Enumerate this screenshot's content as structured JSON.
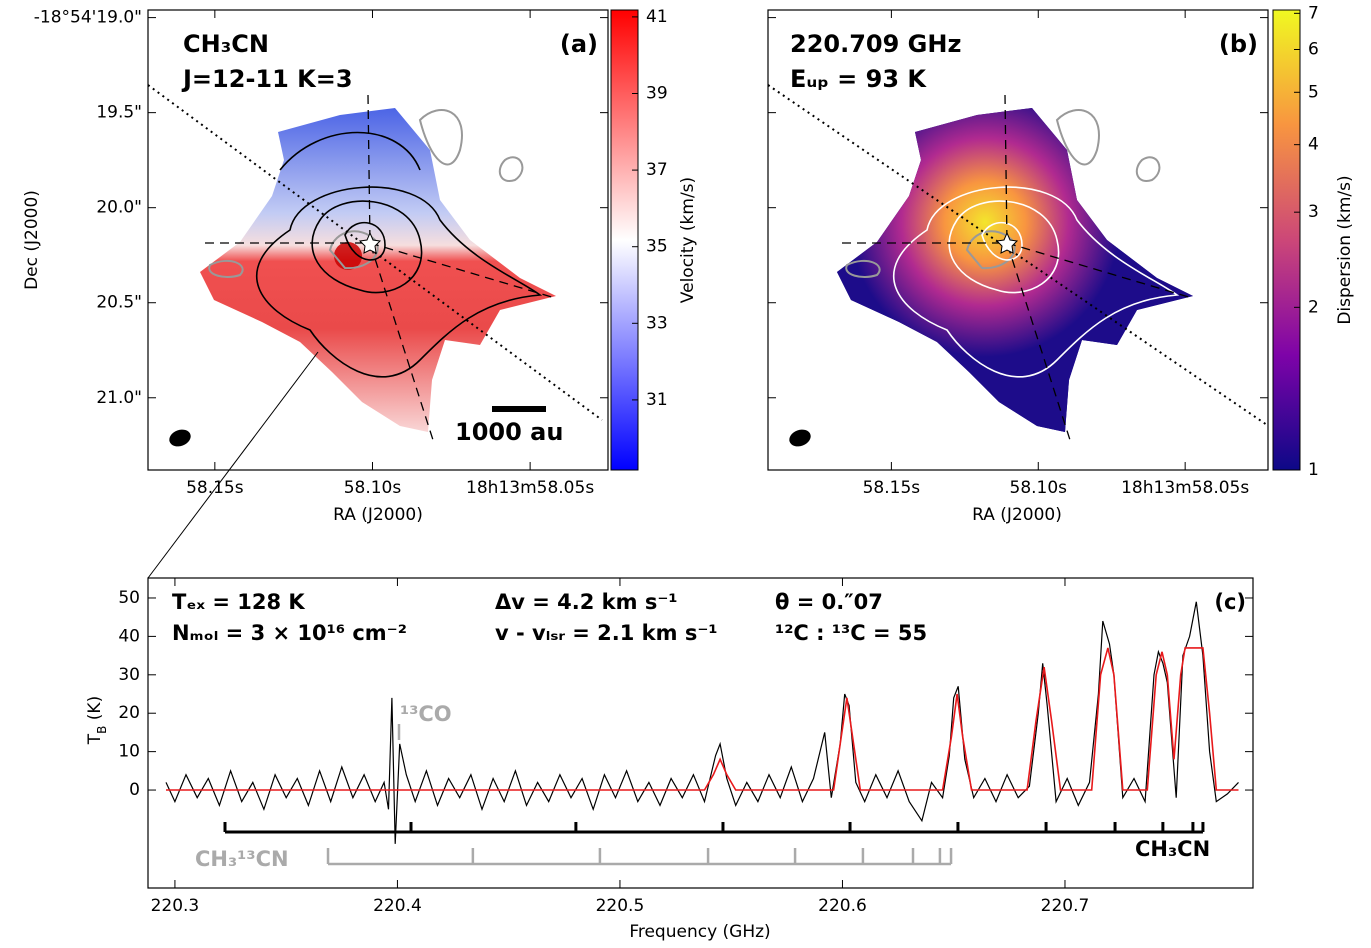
{
  "chart_data": [
    {
      "type": "image",
      "panel_label": "(a)",
      "annotations": [
        "CH₃CN",
        "J=12-11 K=3"
      ],
      "scale_bar": "1000 au",
      "xlabel": "RA (J2000)",
      "ylabel": "Dec (J2000)",
      "xlim": [
        58.1712,
        58.0253
      ],
      "ylim": [
        21.38,
        18.96
      ],
      "xticks": [
        {
          "value": 58.15,
          "label": "58.15s"
        },
        {
          "value": 58.1,
          "label": "58.10s"
        },
        {
          "value": 58.05,
          "label": "18h13m58.05s"
        }
      ],
      "yticks": [
        {
          "value": 19.0,
          "label": "-18°54'19.0\""
        },
        {
          "value": 19.5,
          "label": "19.5\""
        },
        {
          "value": 20.0,
          "label": "20.0\""
        },
        {
          "value": 20.5,
          "label": "20.5\""
        },
        {
          "value": 21.0,
          "label": "21.0\""
        }
      ],
      "colorbar": {
        "label": "Velocity (km/s)",
        "clim": [
          29.17,
          41.18
        ],
        "ticks": [
          31,
          33,
          35,
          37,
          39,
          41
        ],
        "log": false,
        "colors": [
          "#0000ff",
          "#ffffff",
          "#ff0000"
        ]
      }
    },
    {
      "type": "image",
      "panel_label": "(b)",
      "annotations": [
        "220.709 GHz",
        "Eᵤₚ = 93 K"
      ],
      "xlabel": "RA (J2000)",
      "xlim": [
        58.192,
        58.0218
      ],
      "ylim": [
        21.38,
        18.96
      ],
      "xticks": [
        {
          "value": 58.15,
          "label": "58.15s"
        },
        {
          "value": 58.1,
          "label": "58.10s"
        },
        {
          "value": 58.05,
          "label": "18h13m58.05s"
        }
      ],
      "yticks": [
        19.0,
        19.5,
        20.0,
        20.5,
        21.0
      ],
      "show_ytick_labels": false,
      "colorbar": {
        "label": "Dispersion (km/s)",
        "clim": [
          1,
          7.1
        ],
        "ticks": [
          1,
          2,
          3,
          4,
          5,
          6,
          7
        ],
        "log": true,
        "colors": [
          "#0d0887",
          "#7e03a8",
          "#cc4778",
          "#f89540",
          "#f0f921"
        ]
      }
    },
    {
      "type": "line",
      "panel_label": "(c)",
      "xlabel": "Frequency (GHz)",
      "ylabel": [
        "T",
        "B",
        " (K)"
      ],
      "annotations": [
        "Tₑₓ = 128 K",
        "Nₘₒₗ = 3 × 10¹⁶ cm⁻²",
        "Δv = 4.2 km s⁻¹",
        "v - vₗₛᵣ = 2.1 km s⁻¹",
        "θ = 0.″07",
        "¹²C : ¹³C = 55",
        "¹³CO"
      ],
      "xlim": [
        220.2879,
        220.7845
      ],
      "ylim": [
        -25.5,
        55.2
      ],
      "xticks": [
        220.3,
        220.4,
        220.5,
        220.6,
        220.7
      ],
      "yticks": [
        0,
        10,
        20,
        30,
        40,
        50
      ],
      "series": [
        {
          "color": "#000000",
          "x": [
            220.296,
            220.3,
            220.305,
            220.31,
            220.315,
            220.32,
            220.325,
            220.33,
            220.335,
            220.34,
            220.345,
            220.35,
            220.355,
            220.36,
            220.365,
            220.37,
            220.375,
            220.38,
            220.385,
            220.39,
            220.394,
            220.396,
            220.3975,
            220.399,
            220.401,
            220.404,
            220.408,
            220.413,
            220.418,
            220.423,
            220.428,
            220.433,
            220.438,
            220.443,
            220.448,
            220.453,
            220.458,
            220.463,
            220.468,
            220.473,
            220.478,
            220.483,
            220.488,
            220.493,
            220.498,
            220.503,
            220.508,
            220.513,
            220.518,
            220.523,
            220.528,
            220.533,
            220.538,
            220.543,
            220.545,
            220.548,
            220.552,
            220.557,
            220.562,
            220.567,
            220.572,
            220.577,
            220.582,
            220.587,
            220.592,
            220.595,
            220.599,
            220.601,
            220.603,
            220.606,
            220.61,
            220.615,
            220.62,
            220.625,
            220.63,
            220.6357,
            220.64,
            220.645,
            220.648,
            220.65,
            220.652,
            220.655,
            220.659,
            220.664,
            220.669,
            220.674,
            220.679,
            220.684,
            220.688,
            220.69,
            220.692,
            220.696,
            220.701,
            220.706,
            220.711,
            220.715,
            220.717,
            220.72,
            220.722,
            220.726,
            220.731,
            220.736,
            220.74,
            220.742,
            220.744,
            220.746,
            220.75,
            220.753,
            220.756,
            220.759,
            220.762,
            220.765,
            220.768,
            220.773,
            220.778
          ],
          "values": [
            2,
            -3,
            4,
            -2,
            3,
            -4,
            5,
            -3,
            2,
            -5,
            4,
            -2,
            3,
            -4,
            5,
            -3,
            6,
            -2,
            4,
            -3,
            2,
            -5,
            24,
            -14,
            12,
            4,
            -3,
            5,
            -4,
            3,
            -2,
            4,
            -5,
            3,
            -3,
            5,
            -4,
            2,
            -3,
            4,
            -2,
            3,
            -5,
            4,
            -2,
            5,
            -3,
            2,
            -4,
            3,
            -2,
            4,
            -3,
            9,
            12,
            3,
            -4,
            2,
            -3,
            4,
            -2,
            6,
            -3,
            3,
            15,
            -2,
            12,
            25,
            22,
            2,
            -3,
            4,
            -2,
            5,
            -3,
            -8,
            2,
            -2,
            9,
            24,
            27,
            8,
            -2,
            3,
            -3,
            4,
            -2,
            1,
            20,
            33,
            22,
            -3,
            3,
            -4,
            2,
            25,
            44,
            38,
            30,
            -2,
            3,
            -3,
            30,
            36,
            33,
            28,
            -2,
            35,
            40,
            49,
            35,
            10,
            -3,
            -1,
            2
          ]
        },
        {
          "color": "#e8191b",
          "x": [
            220.296,
            220.538,
            220.542,
            220.545,
            220.548,
            220.552,
            220.596,
            220.599,
            220.602,
            220.605,
            220.608,
            220.645,
            220.649,
            220.6515,
            220.654,
            220.658,
            220.683,
            220.687,
            220.6906,
            220.694,
            220.698,
            220.712,
            220.716,
            220.7193,
            220.722,
            220.726,
            220.737,
            220.741,
            220.7436,
            220.746,
            220.749,
            220.752,
            220.754,
            220.762,
            220.765,
            220.768,
            220.778
          ],
          "values": [
            0,
            0,
            4,
            8,
            4,
            0,
            0,
            12,
            24,
            12,
            0,
            0,
            14,
            25,
            14,
            0,
            0,
            18,
            32,
            18,
            0,
            0,
            30,
            37,
            30,
            0,
            0,
            30,
            36,
            30,
            8,
            30,
            37,
            37,
            20,
            0,
            0
          ]
        }
      ],
      "line_markers": [
        {
          "name": "CH₃CN",
          "color": "#000000",
          "x": [
            220.3225,
            220.4061,
            220.4802,
            220.5463,
            220.6034,
            220.6519,
            220.6915,
            220.7225,
            220.744,
            220.7575,
            220.762
          ]
        },
        {
          "name": "CH₃¹³CN",
          "color": "#aaaaaa",
          "x": [
            220.3688,
            220.4339,
            220.491,
            220.5396,
            220.5787,
            220.6092,
            220.6317,
            220.6438,
            220.6488
          ]
        }
      ]
    }
  ]
}
